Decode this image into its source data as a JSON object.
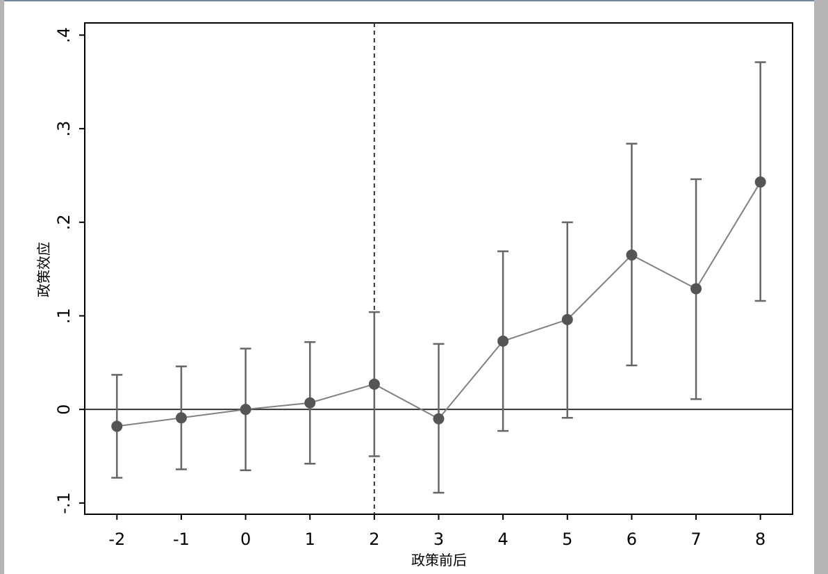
{
  "chart_data": {
    "type": "scatter",
    "title": "",
    "xlabel": "政策前后",
    "ylabel": "政策效应",
    "x": [
      -2,
      -1,
      0,
      1,
      2,
      3,
      4,
      5,
      6,
      7,
      8
    ],
    "xticks": [
      "-2",
      "-1",
      "0",
      "1",
      "2",
      "3",
      "4",
      "5",
      "6",
      "7",
      "8"
    ],
    "yticks": [
      {
        "value": -0.1,
        "label": "-.1"
      },
      {
        "value": 0,
        "label": "0"
      },
      {
        "value": 0.1,
        "label": ".1"
      },
      {
        "value": 0.2,
        "label": ".2"
      },
      {
        "value": 0.3,
        "label": ".3"
      },
      {
        "value": 0.4,
        "label": ".4"
      }
    ],
    "xlim": [
      -2.5,
      8.5
    ],
    "ylim": [
      -0.112,
      0.413
    ],
    "series": [
      {
        "estimate": [
          -0.018,
          -0.009,
          0.0,
          0.007,
          0.027,
          -0.01,
          0.073,
          0.096,
          0.165,
          0.129,
          0.243
        ],
        "ci_low": [
          -0.073,
          -0.064,
          -0.065,
          -0.058,
          -0.05,
          -0.089,
          -0.023,
          -0.009,
          0.047,
          0.011,
          0.116
        ],
        "ci_high": [
          0.037,
          0.046,
          0.065,
          0.072,
          0.104,
          0.07,
          0.169,
          0.2,
          0.284,
          0.246,
          0.371
        ]
      }
    ],
    "reference_lines": {
      "horizontal_y": 0,
      "vertical_x": 2,
      "vertical_style": "dashed"
    },
    "grid": false,
    "colors": {
      "marker": "#555555",
      "line": "#808080",
      "errorbar": "#666666",
      "axis": "#000000"
    }
  }
}
